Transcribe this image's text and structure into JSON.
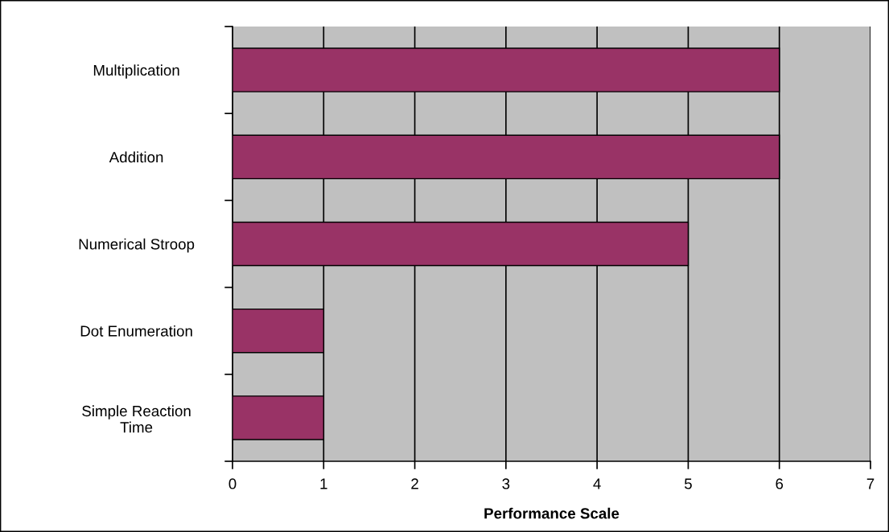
{
  "chart_data": {
    "type": "bar",
    "orientation": "horizontal",
    "xlabel": "Performance Scale",
    "categories": [
      "Multiplication",
      "Addition",
      "Numerical Stroop",
      "Dot Enumeration",
      "Simple Reaction\nTime"
    ],
    "values": [
      6,
      6,
      5,
      1,
      1
    ],
    "color": "#993366",
    "xlim": [
      0,
      7
    ],
    "xticks": [
      0,
      1,
      2,
      3,
      4,
      5,
      6,
      7
    ],
    "grid": "x",
    "legend": false
  }
}
